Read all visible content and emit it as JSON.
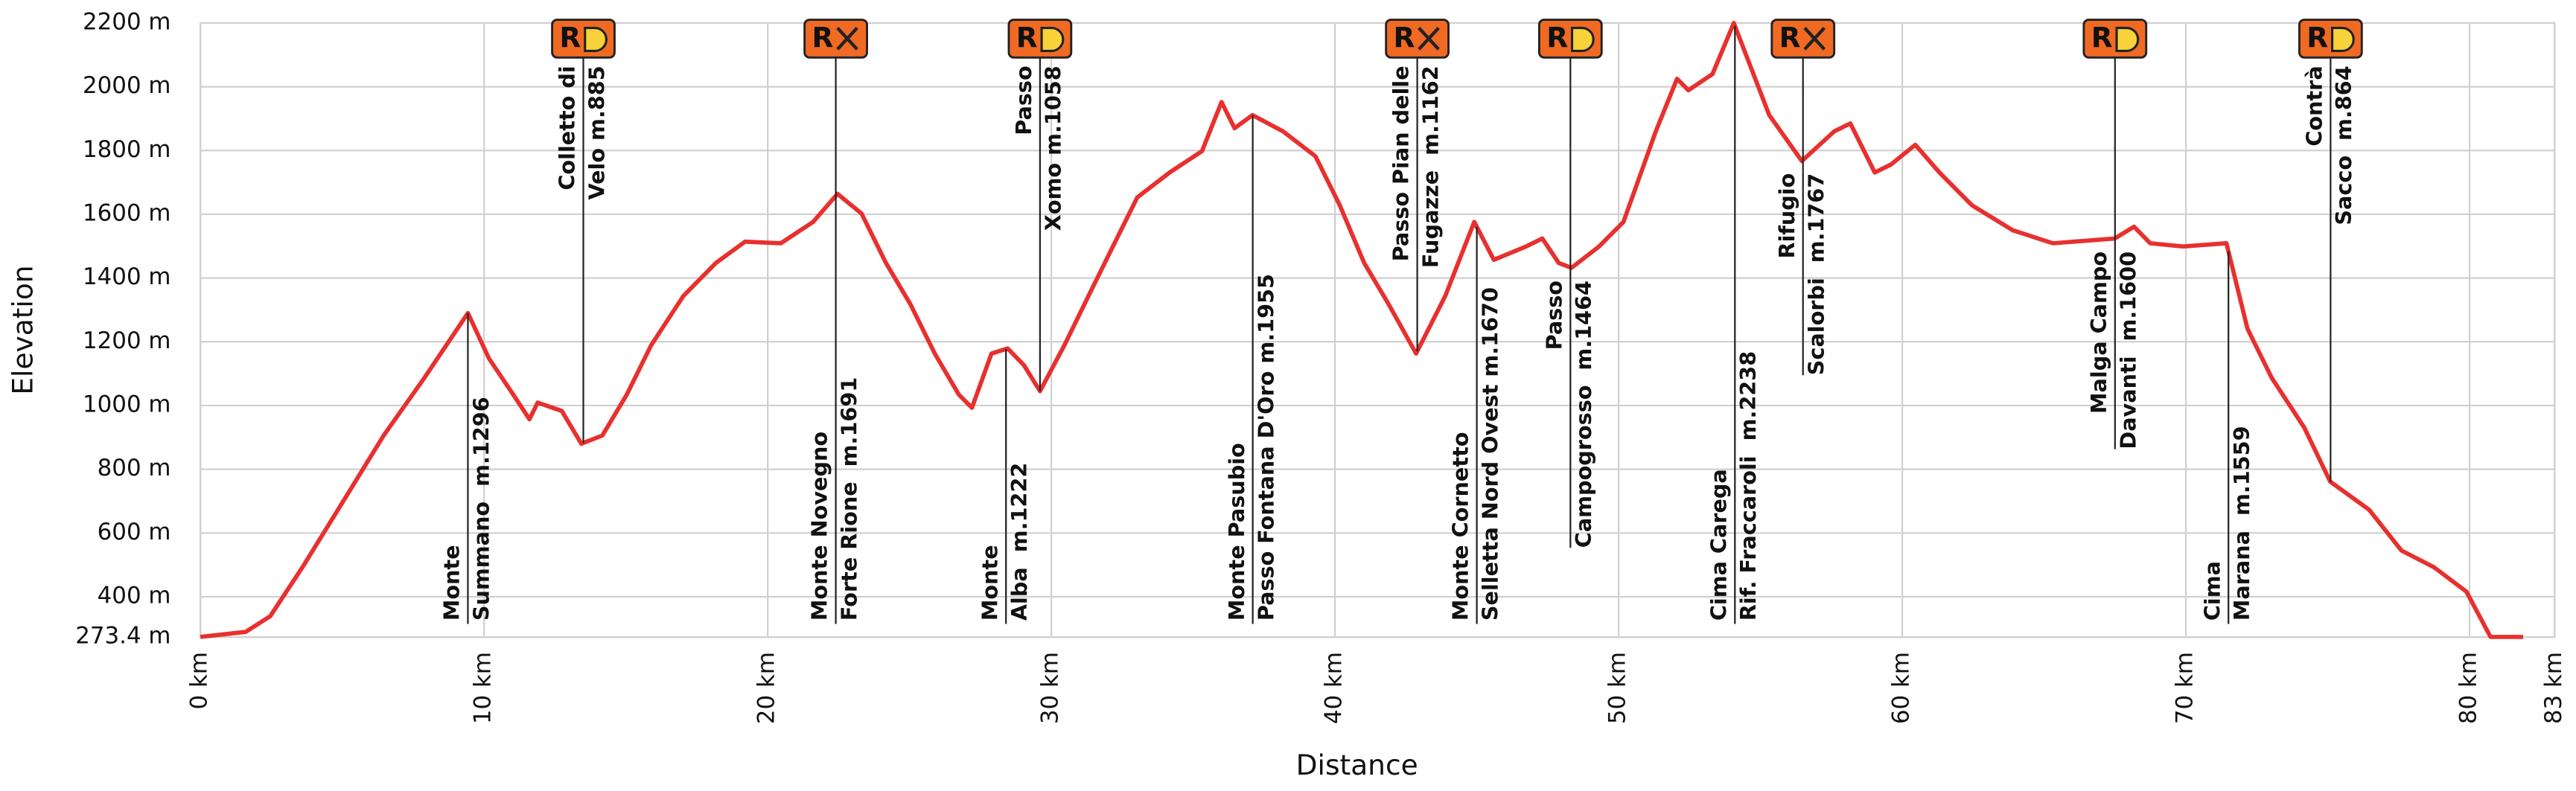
{
  "chart_data": {
    "type": "line",
    "x_label": "Distance",
    "y_label": "Elevation",
    "xlim": [
      0,
      83
    ],
    "ylim": [
      273.4,
      2200
    ],
    "xticks": [
      {
        "value": 0,
        "label": "0 km"
      },
      {
        "value": 10,
        "label": "10 km"
      },
      {
        "value": 20,
        "label": "20 km"
      },
      {
        "value": 30,
        "label": "30 km"
      },
      {
        "value": 40,
        "label": "40 km"
      },
      {
        "value": 50,
        "label": "50 km"
      },
      {
        "value": 60,
        "label": "60 km"
      },
      {
        "value": 70,
        "label": "70 km"
      },
      {
        "value": 80,
        "label": "80 km"
      },
      {
        "value": 83,
        "label": "83 km"
      }
    ],
    "yticks": [
      {
        "value": 273.4,
        "label": "273.4 m"
      },
      {
        "value": 400,
        "label": "400 m"
      },
      {
        "value": 600,
        "label": "600 m"
      },
      {
        "value": 800,
        "label": "800 m"
      },
      {
        "value": 1000,
        "label": "1000 m"
      },
      {
        "value": 1200,
        "label": "1200 m"
      },
      {
        "value": 1400,
        "label": "1400 m"
      },
      {
        "value": 1600,
        "label": "1600 m"
      },
      {
        "value": 1800,
        "label": "1800 m"
      },
      {
        "value": 2000,
        "label": "2000 m"
      },
      {
        "value": 2200,
        "label": "2200 m"
      }
    ],
    "grid": true,
    "series": [
      {
        "color": "#e8302e",
        "x": [
          0,
          1.6,
          2.46,
          3.6,
          5.03,
          6.46,
          7.89,
          9.43,
          10.17,
          11.03,
          11.6,
          11.89,
          12.74,
          13.43,
          14.17,
          15.03,
          15.89,
          17.03,
          18.17,
          19.2,
          20.46,
          21.6,
          22.46,
          23.31,
          24.17,
          25.03,
          25.89,
          26.74,
          27.2,
          27.89,
          28.46,
          29.03,
          29.6,
          30.46,
          31.31,
          32.17,
          33.03,
          34.17,
          35.31,
          36.0,
          36.46,
          37.09,
          38.17,
          39.31,
          40.17,
          41.03,
          41.89,
          42.86,
          43.89,
          44.91,
          45.6,
          46.74,
          47.31,
          47.89,
          48.34,
          49.31,
          50.17,
          51.31,
          52.06,
          52.46,
          53.31,
          54.06,
          55.31,
          56.46,
          57.6,
          58.17,
          59.03,
          59.6,
          60.46,
          61.31,
          62.46,
          63.89,
          65.31,
          67.49,
          68.17,
          68.74,
          69.89,
          71.43,
          72.17,
          73.03,
          74.17,
          75.09,
          76.46,
          77.6,
          78.74,
          79.89,
          80.74,
          81.89
        ],
        "values": [
          274,
          290,
          339,
          493,
          699,
          906,
          1086,
          1290,
          1148,
          1034,
          957,
          1009,
          983,
          880,
          906,
          1034,
          1189,
          1344,
          1447,
          1514,
          1509,
          1576,
          1664,
          1602,
          1447,
          1318,
          1163,
          1034,
          993,
          1163,
          1179,
          1127,
          1045,
          1189,
          1344,
          1499,
          1653,
          1731,
          1798,
          1952,
          1870,
          1911,
          1860,
          1782,
          1628,
          1447,
          1318,
          1163,
          1344,
          1576,
          1457,
          1499,
          1524,
          1447,
          1432,
          1499,
          1576,
          1860,
          2025,
          1989,
          2040,
          2200,
          1911,
          1767,
          1860,
          1885,
          1731,
          1756,
          1818,
          1731,
          1628,
          1550,
          1509,
          1524,
          1561,
          1509,
          1499,
          1509,
          1241,
          1086,
          931,
          761,
          673,
          545,
          493,
          416,
          274,
          274
        ]
      }
    ],
    "annotations": [
      {
        "x": 9.43,
        "lines": [
          "Monte",
          "Summano  m.1296"
        ],
        "label_pos": "bottom"
      },
      {
        "x": 13.5,
        "lines": [
          "Colletto di",
          "Velo m.885"
        ],
        "label_pos": "top",
        "icon": "open",
        "icon_text": "R"
      },
      {
        "x": 22.4,
        "lines": [
          "Monte Novegno",
          "Forte Rione  m.1691"
        ],
        "label_pos": "bottom",
        "icon": "closed",
        "icon_text": "R"
      },
      {
        "x": 28.4,
        "lines": [
          "Monte",
          "Alba  m.1222"
        ],
        "label_pos": "bottom"
      },
      {
        "x": 29.6,
        "lines": [
          "Passo",
          "Xomo m.1058"
        ],
        "label_pos": "top",
        "icon": "open",
        "icon_text": "R"
      },
      {
        "x": 37.1,
        "lines": [
          "Monte Pasubio",
          "Passo Fontana D'Oro m.1955"
        ],
        "label_pos": "bottom"
      },
      {
        "x": 42.9,
        "lines": [
          "Passo Pian delle",
          "Fugazze  m.1162"
        ],
        "label_pos": "top",
        "icon": "closed",
        "icon_text": "R"
      },
      {
        "x": 45.0,
        "lines": [
          "Monte Cornetto",
          "Selletta Nord Ovest m.1670"
        ],
        "label_pos": "bottom"
      },
      {
        "x": 48.3,
        "lines": [
          "Passo",
          "Campogrosso  m.1464"
        ],
        "label_pos": "under",
        "icon": "open",
        "icon_text": "R"
      },
      {
        "x": 54.1,
        "lines": [
          "Cima Carega",
          "Rif. Fraccaroli  m.2238"
        ],
        "label_pos": "bottom"
      },
      {
        "x": 56.5,
        "lines": [
          "Rifugio",
          "Scalorbi  m.1767"
        ],
        "label_pos": "under",
        "icon": "closed",
        "icon_text": "R"
      },
      {
        "x": 67.5,
        "lines": [
          "Malga Campo",
          "Davanti  m.1600"
        ],
        "label_pos": "under",
        "icon": "open",
        "icon_text": "R"
      },
      {
        "x": 71.5,
        "lines": [
          "Cima",
          "Marana  m.1559"
        ],
        "label_pos": "bottom"
      },
      {
        "x": 75.1,
        "lines": [
          "Contrà",
          "Sacco  m.864"
        ],
        "label_pos": "top",
        "icon": "open",
        "icon_text": "R"
      }
    ]
  }
}
